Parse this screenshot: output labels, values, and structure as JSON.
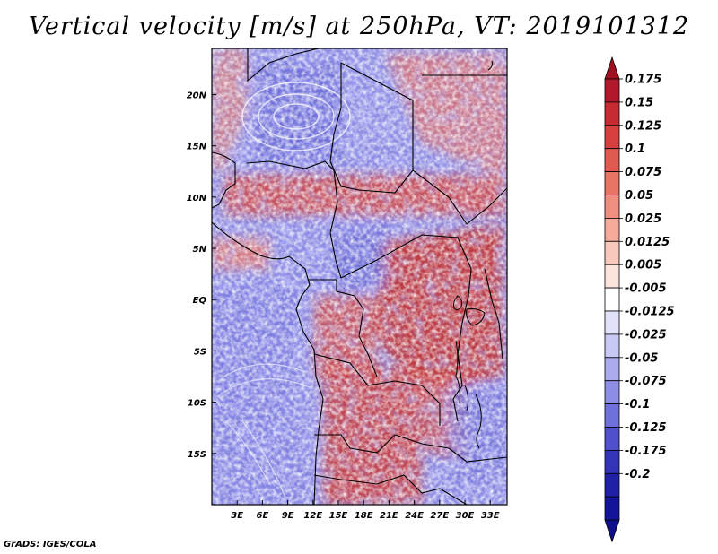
{
  "title": "Vertical velocity [m/s] at 250hPa, VT: 2019101312",
  "credit": "GrADS: IGES/COLA",
  "map": {
    "lon_range": [
      0,
      35
    ],
    "lat_range": [
      -20,
      24.5
    ],
    "lon_ticks": [
      "3E",
      "6E",
      "9E",
      "12E",
      "15E",
      "18E",
      "21E",
      "24E",
      "27E",
      "30E",
      "33E"
    ],
    "lon_tick_values": [
      3,
      6,
      9,
      12,
      15,
      18,
      21,
      24,
      27,
      30,
      33
    ],
    "lat_ticks": [
      "20N",
      "15N",
      "10N",
      "5N",
      "EQ",
      "5S",
      "10S",
      "15S"
    ],
    "lat_tick_values": [
      20,
      15,
      10,
      5,
      0,
      -5,
      -10,
      -15
    ]
  },
  "colorbar": {
    "labels": [
      "0.175",
      "0.15",
      "0.125",
      "0.1",
      "0.075",
      "0.05",
      "0.025",
      "0.0125",
      "0.005",
      "-0.005",
      "-0.0125",
      "-0.025",
      "-0.05",
      "-0.075",
      "-0.1",
      "-0.125",
      "-0.175",
      "-0.2"
    ],
    "colors": [
      "#b2182b",
      "#c62a32",
      "#d6403e",
      "#e05a50",
      "#e87466",
      "#f08f80",
      "#f5aa9c",
      "#f9c8bd",
      "#fce3dc",
      "#ffffff",
      "#e2e2fb",
      "#c8c8f5",
      "#ababee",
      "#8e8ee6",
      "#7070dc",
      "#5050cc",
      "#3434b8",
      "#2020a6",
      "#14149a"
    ],
    "top_color": "#a01020",
    "bottom_color": "#10108c"
  }
}
